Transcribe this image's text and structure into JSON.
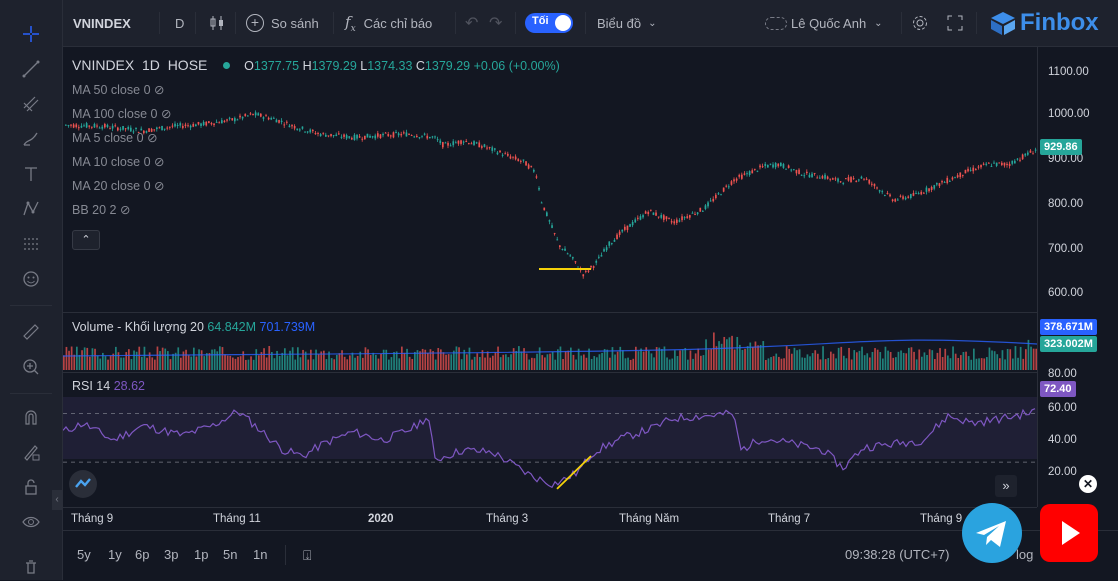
{
  "toolbar": {
    "symbol": "VNINDEX",
    "interval": "D",
    "compare": "So sánh",
    "indicators": "Các chỉ báo",
    "theme_label": "Tối",
    "chart_type": "Biểu đồ",
    "user": "Lê Quốc Anh",
    "brand": "Finbox"
  },
  "legend": {
    "title": "VNINDEX  1D  HOSE",
    "o_label": "O",
    "o": "1377.75",
    "h_label": "H",
    "h": "1379.29",
    "l_label": "L",
    "l": "1374.33",
    "c_label": "C",
    "c": "1379.29",
    "chg": "+0.06 (+0.00%)",
    "studies": [
      "MA 50 close 0",
      "MA 100 close 0",
      "MA 5 close 0",
      "MA 10 close 0",
      "MA 20 close 0",
      "BB 20 2"
    ],
    "volume_label": "Volume - Khối lượng 20",
    "volume_v1": "64.842M",
    "volume_v2": "701.739M",
    "rsi_label": "RSI 14",
    "rsi_v": "28.62"
  },
  "price_axis": {
    "ticks": [
      "1100.00",
      "1000.00",
      "900.00",
      "800.00",
      "700.00",
      "600.00"
    ],
    "last_price": "929.86",
    "last_price_color": "#26a69a"
  },
  "volume_axis": {
    "v1": "378.671M",
    "v2": "323.002M",
    "v1_color": "#2962ff",
    "v2_color": "#26a69a"
  },
  "rsi_axis": {
    "ticks": [
      "80.00",
      "60.00",
      "40.00",
      "20.00"
    ],
    "current": "72.40",
    "current_color": "#7e57c2"
  },
  "time_axis": {
    "labels": [
      "Tháng 9",
      "Tháng 11",
      "2020",
      "Tháng 3",
      "Tháng Năm",
      "Tháng 7",
      "Tháng 9"
    ]
  },
  "bottom": {
    "ranges": [
      "5y",
      "1y",
      "6p",
      "3p",
      "1p",
      "5n",
      "1n"
    ],
    "clock": "09:38:28 (UTC+7)",
    "log": "log"
  },
  "colors": {
    "up": "#26a69a",
    "down": "#ef5350",
    "rsi": "#7e57c2",
    "annot": "#f5d20a"
  }
}
